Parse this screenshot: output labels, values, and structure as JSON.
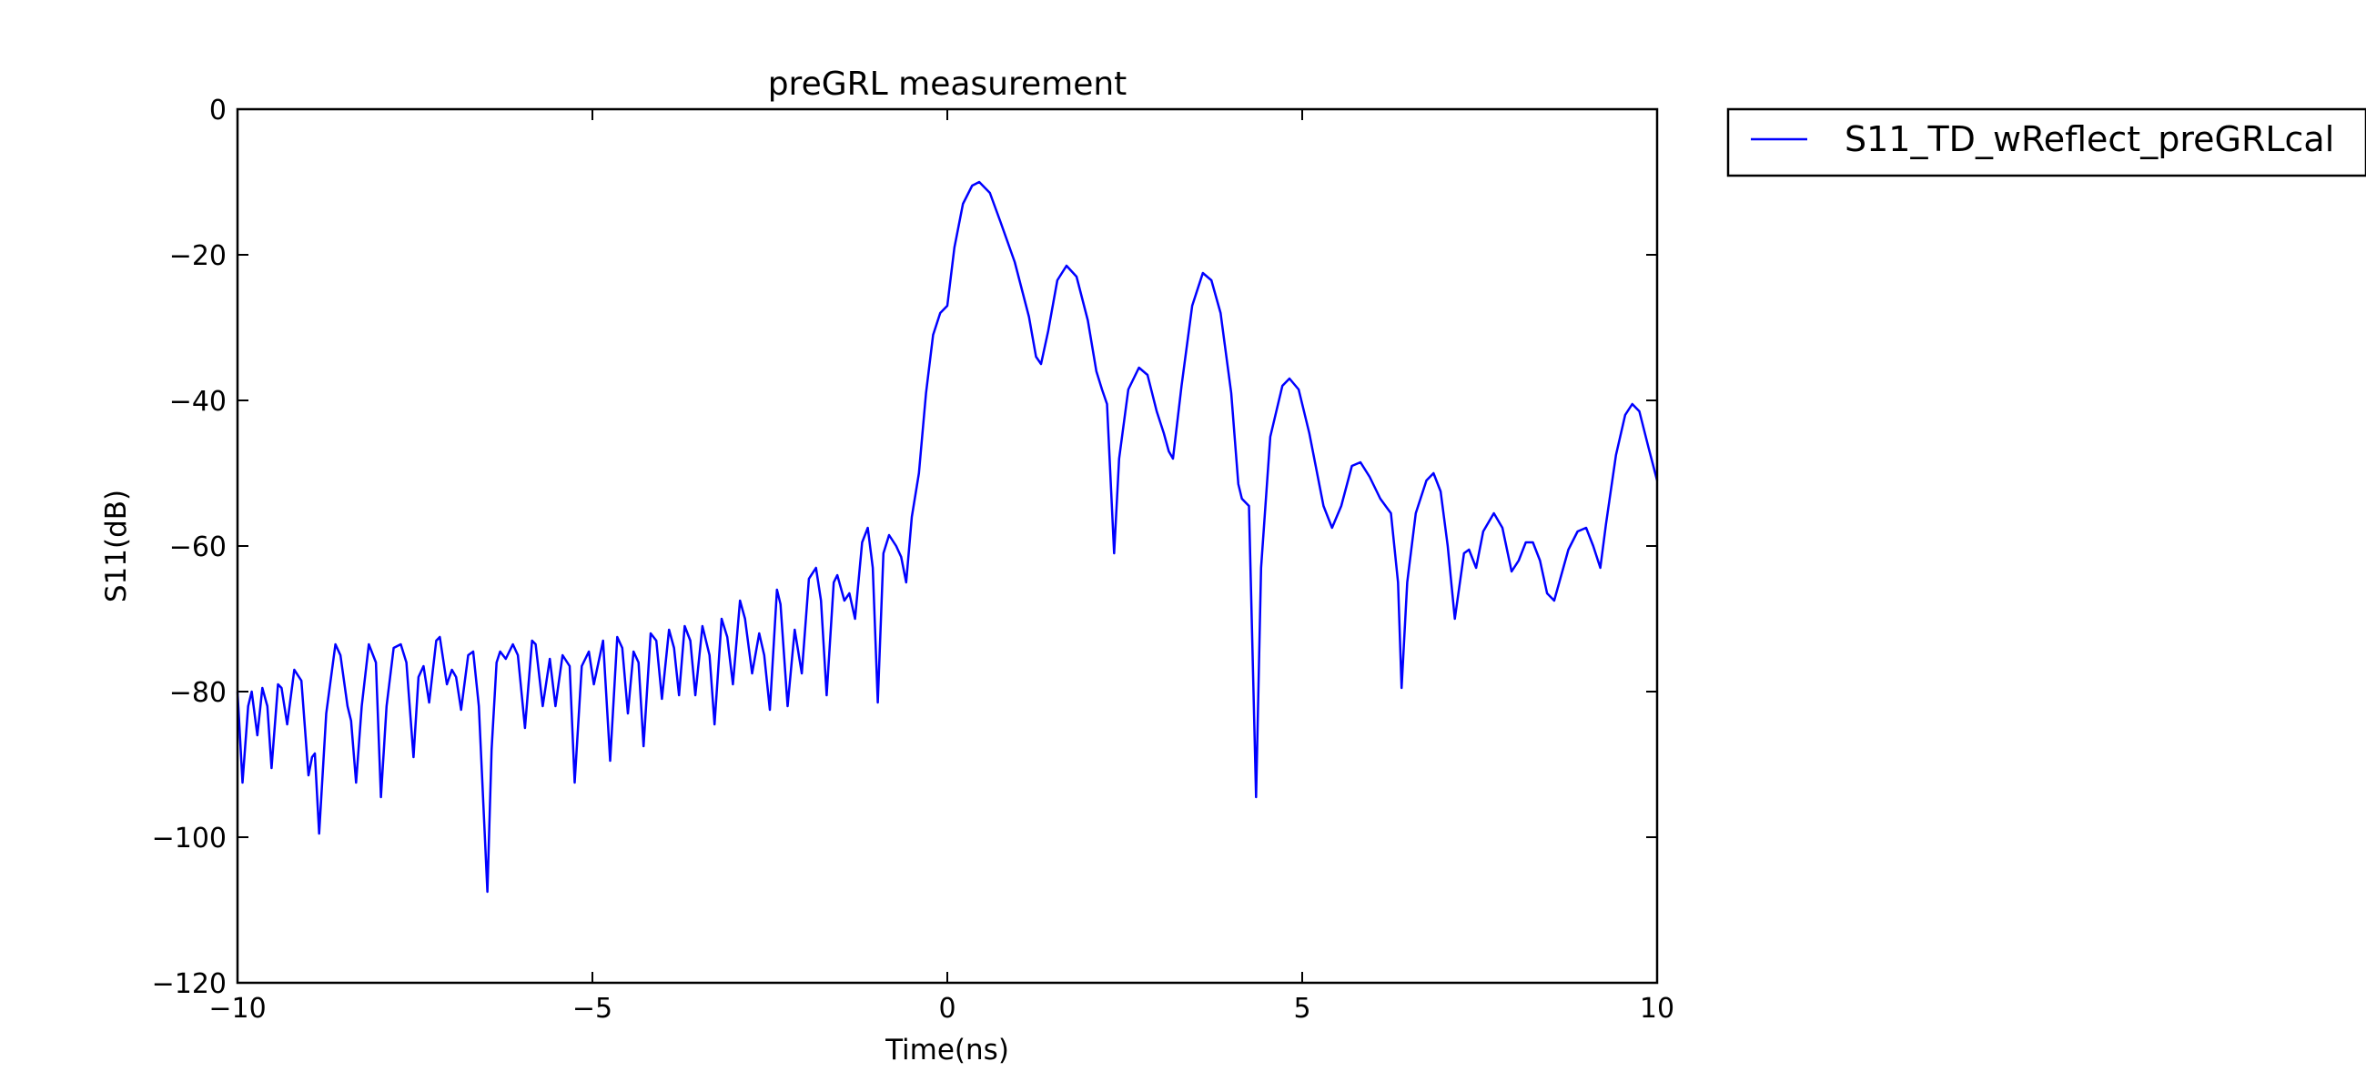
{
  "chart_data": {
    "type": "line",
    "title": "preGRL measurement",
    "xlabel": "Time(ns)",
    "ylabel": "S11(dB)",
    "xlim": [
      -10,
      10
    ],
    "ylim": [
      -120,
      0
    ],
    "xticks": [
      -10,
      -5,
      0,
      5,
      10
    ],
    "yticks": [
      0,
      -20,
      -40,
      -60,
      -80,
      -100,
      -120
    ],
    "xtick_labels": [
      "−10",
      "−5",
      "0",
      "5",
      "10"
    ],
    "ytick_labels": [
      "0",
      "−20",
      "−40",
      "−60",
      "−80",
      "−100",
      "−120"
    ],
    "grid": false,
    "legend_position": "outside-top-right",
    "series": [
      {
        "name": "S11_TD_wReflect_preGRLcal",
        "color": "#0000ff",
        "points": [
          [
            -10.0,
            -80
          ],
          [
            -9.93,
            -92.5
          ],
          [
            -9.85,
            -82
          ],
          [
            -9.8,
            -80
          ],
          [
            -9.72,
            -86
          ],
          [
            -9.65,
            -79.5
          ],
          [
            -9.58,
            -82
          ],
          [
            -9.52,
            -90.5
          ],
          [
            -9.43,
            -79
          ],
          [
            -9.38,
            -79.5
          ],
          [
            -9.3,
            -84.5
          ],
          [
            -9.2,
            -77
          ],
          [
            -9.1,
            -78.5
          ],
          [
            -9.0,
            -91.5
          ],
          [
            -8.95,
            -89
          ],
          [
            -8.91,
            -88.5
          ],
          [
            -8.85,
            -99.5
          ],
          [
            -8.75,
            -83
          ],
          [
            -8.62,
            -73.5
          ],
          [
            -8.55,
            -75
          ],
          [
            -8.45,
            -82
          ],
          [
            -8.4,
            -84
          ],
          [
            -8.33,
            -92.5
          ],
          [
            -8.25,
            -82
          ],
          [
            -8.15,
            -73.5
          ],
          [
            -8.05,
            -76
          ],
          [
            -7.98,
            -94.5
          ],
          [
            -7.9,
            -82
          ],
          [
            -7.8,
            -74
          ],
          [
            -7.7,
            -73.5
          ],
          [
            -7.62,
            -76
          ],
          [
            -7.52,
            -89
          ],
          [
            -7.45,
            -78
          ],
          [
            -7.38,
            -76.5
          ],
          [
            -7.3,
            -81.5
          ],
          [
            -7.2,
            -73
          ],
          [
            -7.15,
            -72.5
          ],
          [
            -7.05,
            -79
          ],
          [
            -6.98,
            -77
          ],
          [
            -6.92,
            -78
          ],
          [
            -6.85,
            -82.5
          ],
          [
            -6.75,
            -75
          ],
          [
            -6.68,
            -74.5
          ],
          [
            -6.6,
            -82
          ],
          [
            -6.48,
            -107.5
          ],
          [
            -6.42,
            -88
          ],
          [
            -6.35,
            -76
          ],
          [
            -6.3,
            -74.5
          ],
          [
            -6.22,
            -75.5
          ],
          [
            -6.12,
            -73.5
          ],
          [
            -6.05,
            -75
          ],
          [
            -5.95,
            -85
          ],
          [
            -5.85,
            -73
          ],
          [
            -5.8,
            -73.5
          ],
          [
            -5.7,
            -82
          ],
          [
            -5.6,
            -75.5
          ],
          [
            -5.52,
            -82
          ],
          [
            -5.42,
            -75
          ],
          [
            -5.32,
            -76.5
          ],
          [
            -5.25,
            -92.5
          ],
          [
            -5.15,
            -76.5
          ],
          [
            -5.05,
            -74.5
          ],
          [
            -4.98,
            -79
          ],
          [
            -4.85,
            -73
          ],
          [
            -4.75,
            -89.5
          ],
          [
            -4.65,
            -72.5
          ],
          [
            -4.58,
            -74
          ],
          [
            -4.5,
            -83
          ],
          [
            -4.42,
            -74.5
          ],
          [
            -4.35,
            -76
          ],
          [
            -4.28,
            -87.5
          ],
          [
            -4.18,
            -72
          ],
          [
            -4.1,
            -73
          ],
          [
            -4.02,
            -81
          ],
          [
            -3.92,
            -71.5
          ],
          [
            -3.85,
            -74
          ],
          [
            -3.78,
            -80.5
          ],
          [
            -3.7,
            -71
          ],
          [
            -3.62,
            -73
          ],
          [
            -3.55,
            -80.5
          ],
          [
            -3.45,
            -71
          ],
          [
            -3.35,
            -75
          ],
          [
            -3.28,
            -84.5
          ],
          [
            -3.18,
            -70
          ],
          [
            -3.1,
            -72.5
          ],
          [
            -3.02,
            -79
          ],
          [
            -2.92,
            -67.5
          ],
          [
            -2.85,
            -70
          ],
          [
            -2.75,
            -77.5
          ],
          [
            -2.65,
            -72
          ],
          [
            -2.58,
            -75
          ],
          [
            -2.5,
            -82.5
          ],
          [
            -2.4,
            -66
          ],
          [
            -2.35,
            -68
          ],
          [
            -2.25,
            -82
          ],
          [
            -2.15,
            -71.5
          ],
          [
            -2.05,
            -77.5
          ],
          [
            -1.95,
            -64.5
          ],
          [
            -1.85,
            -63
          ],
          [
            -1.78,
            -67.5
          ],
          [
            -1.7,
            -80.5
          ],
          [
            -1.6,
            -65
          ],
          [
            -1.55,
            -64
          ],
          [
            -1.45,
            -67.5
          ],
          [
            -1.38,
            -66.5
          ],
          [
            -1.3,
            -70
          ],
          [
            -1.2,
            -59.5
          ],
          [
            -1.12,
            -57.5
          ],
          [
            -1.05,
            -63
          ],
          [
            -0.98,
            -81.5
          ],
          [
            -0.9,
            -61
          ],
          [
            -0.82,
            -58.5
          ],
          [
            -0.72,
            -60
          ],
          [
            -0.65,
            -61.5
          ],
          [
            -0.58,
            -65
          ],
          [
            -0.5,
            -56
          ],
          [
            -0.4,
            -50
          ],
          [
            -0.3,
            -39
          ],
          [
            -0.2,
            -31
          ],
          [
            -0.1,
            -28
          ],
          [
            0.0,
            -27
          ],
          [
            0.1,
            -19
          ],
          [
            0.22,
            -13
          ],
          [
            0.35,
            -10.5
          ],
          [
            0.45,
            -10
          ],
          [
            0.6,
            -11.5
          ],
          [
            0.75,
            -15.5
          ],
          [
            0.95,
            -21
          ],
          [
            1.15,
            -28.5
          ],
          [
            1.25,
            -34
          ],
          [
            1.32,
            -35
          ],
          [
            1.42,
            -30.5
          ],
          [
            1.55,
            -23.5
          ],
          [
            1.68,
            -21.5
          ],
          [
            1.82,
            -23
          ],
          [
            1.98,
            -29
          ],
          [
            2.1,
            -36
          ],
          [
            2.18,
            -38.5
          ],
          [
            2.25,
            -40.5
          ],
          [
            2.35,
            -61
          ],
          [
            2.42,
            -48
          ],
          [
            2.55,
            -38.5
          ],
          [
            2.7,
            -35.5
          ],
          [
            2.82,
            -36.5
          ],
          [
            2.95,
            -41.5
          ],
          [
            3.05,
            -44.5
          ],
          [
            3.12,
            -47
          ],
          [
            3.18,
            -48
          ],
          [
            3.3,
            -38
          ],
          [
            3.45,
            -27
          ],
          [
            3.6,
            -22.5
          ],
          [
            3.72,
            -23.5
          ],
          [
            3.85,
            -28
          ],
          [
            4.0,
            -39
          ],
          [
            4.1,
            -51.5
          ],
          [
            4.15,
            -53.5
          ],
          [
            4.25,
            -54.5
          ],
          [
            4.35,
            -94.5
          ],
          [
            4.42,
            -63
          ],
          [
            4.55,
            -45
          ],
          [
            4.72,
            -38
          ],
          [
            4.82,
            -37
          ],
          [
            4.95,
            -38.5
          ],
          [
            5.1,
            -44.5
          ],
          [
            5.3,
            -54.5
          ],
          [
            5.42,
            -57.5
          ],
          [
            5.55,
            -54.5
          ],
          [
            5.7,
            -49
          ],
          [
            5.82,
            -48.5
          ],
          [
            5.95,
            -50.5
          ],
          [
            6.1,
            -53.5
          ],
          [
            6.25,
            -55.5
          ],
          [
            6.35,
            -65
          ],
          [
            6.4,
            -79.5
          ],
          [
            6.48,
            -65
          ],
          [
            6.6,
            -55.5
          ],
          [
            6.75,
            -51
          ],
          [
            6.85,
            -50
          ],
          [
            6.95,
            -52.5
          ],
          [
            7.05,
            -60
          ],
          [
            7.15,
            -70
          ],
          [
            7.28,
            -61
          ],
          [
            7.35,
            -60.5
          ],
          [
            7.45,
            -63
          ],
          [
            7.55,
            -58
          ],
          [
            7.7,
            -55.5
          ],
          [
            7.82,
            -57.5
          ],
          [
            7.95,
            -63.5
          ],
          [
            8.05,
            -62
          ],
          [
            8.15,
            -59.5
          ],
          [
            8.25,
            -59.5
          ],
          [
            8.35,
            -62
          ],
          [
            8.45,
            -66.5
          ],
          [
            8.55,
            -67.5
          ],
          [
            8.65,
            -64
          ],
          [
            8.75,
            -60.5
          ],
          [
            8.88,
            -58
          ],
          [
            9.0,
            -57.5
          ],
          [
            9.1,
            -60
          ],
          [
            9.2,
            -63
          ],
          [
            9.28,
            -57
          ],
          [
            9.42,
            -47.5
          ],
          [
            9.55,
            -42
          ],
          [
            9.65,
            -40.5
          ],
          [
            9.75,
            -41.5
          ],
          [
            9.88,
            -46.5
          ],
          [
            10.0,
            -51
          ]
        ]
      }
    ]
  }
}
